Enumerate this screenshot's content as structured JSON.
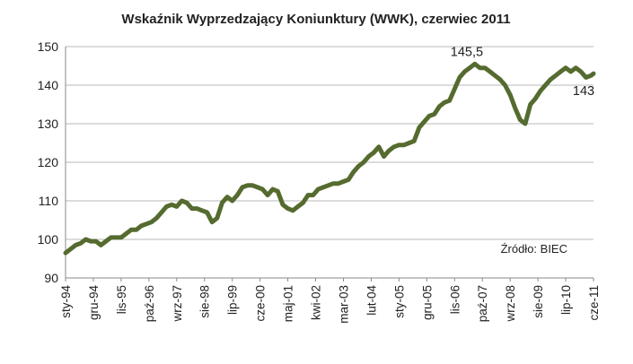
{
  "chart_data": {
    "type": "line",
    "title": "Wskaźnik Wyprzedzający Koniunktury (WWK), czerwiec 2011",
    "xlabel": "",
    "ylabel": "",
    "ylim": [
      90,
      150
    ],
    "yticks": [
      "90",
      "100",
      "110",
      "120",
      "130",
      "140",
      "150"
    ],
    "grid": true,
    "legend": "none",
    "x_tick_labels": [
      "sty-94",
      "gru-94",
      "lis-95",
      "paź-96",
      "wrz-97",
      "sie-98",
      "lip-99",
      "cze-00",
      "maj-01",
      "kwi-02",
      "mar-03",
      "lut-04",
      "sty-05",
      "gru-05",
      "lis-06",
      "paź-07",
      "wrz-08",
      "sie-09",
      "lip-10",
      "cze-11"
    ],
    "annotations": [
      {
        "text": "145,5",
        "x": "2007-06",
        "y": 145.5
      },
      {
        "text": "143",
        "x": "2011-06",
        "y": 143
      }
    ],
    "source": "Źródło: BIEC",
    "series": [
      {
        "color": "#556b2f",
        "points": [
          [
            "1994-01",
            96.5
          ],
          [
            "1994-03",
            97.5
          ],
          [
            "1994-05",
            98.5
          ],
          [
            "1994-07",
            99.0
          ],
          [
            "1994-09",
            100.0
          ],
          [
            "1994-11",
            99.5
          ],
          [
            "1995-01",
            99.5
          ],
          [
            "1995-03",
            98.5
          ],
          [
            "1995-05",
            99.5
          ],
          [
            "1995-07",
            100.5
          ],
          [
            "1995-09",
            100.5
          ],
          [
            "1995-11",
            100.5
          ],
          [
            "1996-01",
            101.5
          ],
          [
            "1996-03",
            102.5
          ],
          [
            "1996-05",
            102.5
          ],
          [
            "1996-07",
            103.5
          ],
          [
            "1996-09",
            104.0
          ],
          [
            "1996-11",
            104.5
          ],
          [
            "1997-01",
            105.5
          ],
          [
            "1997-03",
            107.0
          ],
          [
            "1997-05",
            108.5
          ],
          [
            "1997-07",
            109.0
          ],
          [
            "1997-09",
            108.5
          ],
          [
            "1997-11",
            110.0
          ],
          [
            "1998-01",
            109.5
          ],
          [
            "1998-03",
            108.0
          ],
          [
            "1998-05",
            108.0
          ],
          [
            "1998-07",
            107.5
          ],
          [
            "1998-09",
            107.0
          ],
          [
            "1998-11",
            104.5
          ],
          [
            "1999-01",
            105.5
          ],
          [
            "1999-03",
            109.5
          ],
          [
            "1999-05",
            111.0
          ],
          [
            "1999-07",
            110.0
          ],
          [
            "1999-09",
            111.5
          ],
          [
            "1999-11",
            113.5
          ],
          [
            "2000-01",
            114.0
          ],
          [
            "2000-03",
            114.0
          ],
          [
            "2000-05",
            113.5
          ],
          [
            "2000-07",
            113.0
          ],
          [
            "2000-09",
            111.5
          ],
          [
            "2000-11",
            113.0
          ],
          [
            "2001-01",
            112.5
          ],
          [
            "2001-03",
            109.0
          ],
          [
            "2001-05",
            108.0
          ],
          [
            "2001-07",
            107.5
          ],
          [
            "2001-09",
            108.5
          ],
          [
            "2001-11",
            109.5
          ],
          [
            "2002-01",
            111.5
          ],
          [
            "2002-03",
            111.5
          ],
          [
            "2002-05",
            113.0
          ],
          [
            "2002-07",
            113.5
          ],
          [
            "2002-09",
            114.0
          ],
          [
            "2002-11",
            114.5
          ],
          [
            "2003-01",
            114.5
          ],
          [
            "2003-03",
            115.0
          ],
          [
            "2003-05",
            115.5
          ],
          [
            "2003-07",
            117.5
          ],
          [
            "2003-09",
            119.0
          ],
          [
            "2003-11",
            120.0
          ],
          [
            "2004-01",
            121.5
          ],
          [
            "2004-03",
            122.5
          ],
          [
            "2004-05",
            124.0
          ],
          [
            "2004-07",
            121.5
          ],
          [
            "2004-09",
            123.0
          ],
          [
            "2004-11",
            124.0
          ],
          [
            "2005-01",
            124.5
          ],
          [
            "2005-03",
            124.5
          ],
          [
            "2005-05",
            125.0
          ],
          [
            "2005-07",
            125.5
          ],
          [
            "2005-09",
            129.0
          ],
          [
            "2005-11",
            130.5
          ],
          [
            "2006-01",
            132.0
          ],
          [
            "2006-03",
            132.5
          ],
          [
            "2006-05",
            134.5
          ],
          [
            "2006-07",
            135.5
          ],
          [
            "2006-09",
            136.0
          ],
          [
            "2006-11",
            139.0
          ],
          [
            "2007-01",
            142.0
          ],
          [
            "2007-03",
            143.5
          ],
          [
            "2007-05",
            144.5
          ],
          [
            "2007-07",
            145.5
          ],
          [
            "2007-09",
            144.5
          ],
          [
            "2007-11",
            144.5
          ],
          [
            "2008-01",
            143.5
          ],
          [
            "2008-03",
            142.5
          ],
          [
            "2008-05",
            141.5
          ],
          [
            "2008-07",
            140.0
          ],
          [
            "2008-09",
            137.5
          ],
          [
            "2008-11",
            134.0
          ],
          [
            "2009-01",
            131.0
          ],
          [
            "2009-03",
            130.0
          ],
          [
            "2009-05",
            135.0
          ],
          [
            "2009-07",
            136.5
          ],
          [
            "2009-09",
            138.5
          ],
          [
            "2009-11",
            140.0
          ],
          [
            "2010-01",
            141.5
          ],
          [
            "2010-03",
            142.5
          ],
          [
            "2010-05",
            143.5
          ],
          [
            "2010-07",
            144.5
          ],
          [
            "2010-09",
            143.5
          ],
          [
            "2010-11",
            144.5
          ],
          [
            "2011-01",
            143.5
          ],
          [
            "2011-03",
            142.0
          ],
          [
            "2011-05",
            142.5
          ],
          [
            "2011-06",
            143.0
          ]
        ]
      }
    ]
  }
}
